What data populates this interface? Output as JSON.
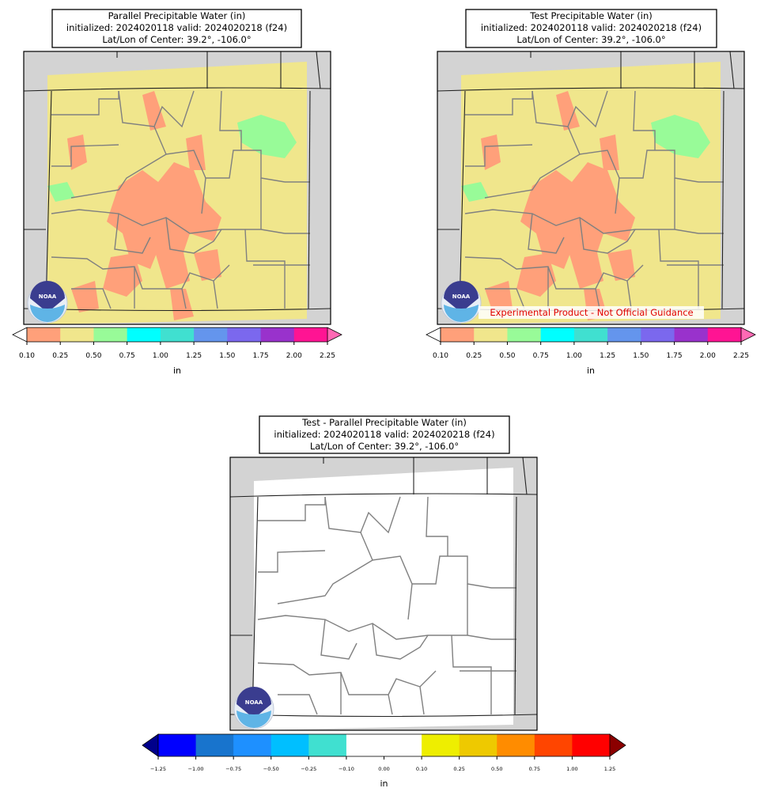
{
  "panels": [
    {
      "title_lines": [
        "Parallel Precipitable Water (in)",
        "initialized: 2024020118 valid: 2024020218 (f24)",
        "Lat/Lon of Center: 39.2°, -106.0°"
      ],
      "colorbar": {
        "ticks": [
          "0.10",
          "0.25",
          "0.50",
          "0.75",
          "1.00",
          "1.25",
          "1.50",
          "1.75",
          "2.00",
          "2.25"
        ],
        "colors": [
          "#ffa07a",
          "#f0e68c",
          "#98fb98",
          "#00ffff",
          "#40e0d0",
          "#6495ed",
          "#7b68ee",
          "#9932cc",
          "#ff1493"
        ],
        "under_color": "#ffffff",
        "over_color": "#ff69b4",
        "label": "in"
      },
      "logo": "NOAA"
    },
    {
      "title_lines": [
        "Test Precipitable Water (in)",
        "initialized: 2024020118 valid: 2024020218 (f24)",
        "Lat/Lon of Center: 39.2°, -106.0°"
      ],
      "colorbar": {
        "ticks": [
          "0.10",
          "0.25",
          "0.50",
          "0.75",
          "1.00",
          "1.25",
          "1.50",
          "1.75",
          "2.00",
          "2.25"
        ],
        "colors": [
          "#ffa07a",
          "#f0e68c",
          "#98fb98",
          "#00ffff",
          "#40e0d0",
          "#6495ed",
          "#7b68ee",
          "#9932cc",
          "#ff1493"
        ],
        "under_color": "#ffffff",
        "over_color": "#ff69b4",
        "label": "in"
      },
      "logo": "NOAA",
      "watermark": "Experimental Product - Not Official Guidance"
    },
    {
      "title_lines": [
        "Test - Parallel Precipitable Water (in)",
        "initialized: 2024020118 valid: 2024020218 (f24)",
        "Lat/Lon of Center: 39.2°, -106.0°"
      ],
      "colorbar": {
        "ticks": [
          "−1.25",
          "−1.00",
          "−0.75",
          "−0.50",
          "−0.25",
          "−0.10",
          "0.00",
          "0.10",
          "0.25",
          "0.50",
          "0.75",
          "1.00",
          "1.25"
        ],
        "colors": [
          "#0000ff",
          "#1874cd",
          "#1e90ff",
          "#00bfff",
          "#40e0d0",
          "#ffffff",
          "#ffffff",
          "#eeee00",
          "#eec900",
          "#ff8c00",
          "#ff4500",
          "#ff0000"
        ],
        "under_color": "#00008b",
        "over_color": "#8b0000",
        "label": "in"
      },
      "logo": "NOAA"
    }
  ]
}
